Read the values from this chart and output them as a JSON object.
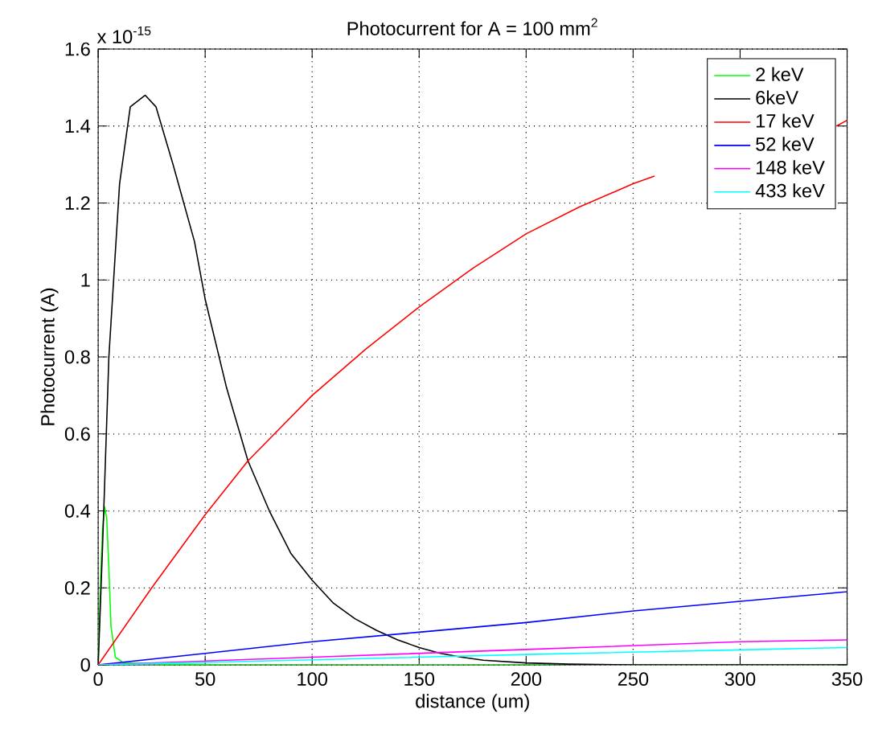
{
  "chart_data": {
    "type": "line",
    "title": "Photocurrent for A = 100 mm$^{2}$",
    "xlabel": "distance (um)",
    "ylabel": "Photocurrent (A)",
    "annotations": [
      "x 10$^{-15}$"
    ],
    "xlim": [
      0,
      350
    ],
    "ylim": [
      0,
      1.6
    ],
    "xticks": [
      0,
      50,
      100,
      150,
      200,
      250,
      300,
      350
    ],
    "yticks": [
      0,
      0.2,
      0.4,
      0.6,
      0.8,
      1,
      1.2,
      1.4,
      1.6
    ],
    "grid": true,
    "legend": "top right",
    "marker": "none",
    "line_style": "solid",
    "series": [
      {
        "name": "2 keV",
        "color": "#00ff00",
        "x": [
          0,
          1,
          2,
          3,
          4,
          5,
          6,
          8,
          12,
          30,
          65,
          100,
          350
        ],
        "values": [
          0,
          0.2,
          0.35,
          0.41,
          0.38,
          0.25,
          0.1,
          0.02,
          0.005,
          0.002,
          0,
          0,
          0
        ]
      },
      {
        "name": "6keV",
        "color": "#000000",
        "x": [
          0,
          2,
          5,
          10,
          15,
          22,
          27,
          35,
          45,
          50,
          60,
          70,
          80,
          90,
          100,
          110,
          120,
          130,
          140,
          150,
          160,
          170,
          180,
          200,
          220,
          250,
          350
        ],
        "values": [
          0,
          0.3,
          0.8,
          1.25,
          1.45,
          1.48,
          1.45,
          1.3,
          1.1,
          0.95,
          0.72,
          0.53,
          0.4,
          0.29,
          0.22,
          0.16,
          0.12,
          0.09,
          0.065,
          0.045,
          0.03,
          0.02,
          0.012,
          0.005,
          0.002,
          0,
          0
        ]
      },
      {
        "name": "17 keV",
        "color": "#ff0000",
        "x": [
          0,
          25,
          50,
          70,
          100,
          125,
          150,
          175,
          200,
          225,
          250,
          260,
          280,
          300,
          320,
          340,
          345,
          350
        ],
        "values": [
          0,
          0.2,
          0.39,
          0.53,
          0.7,
          0.82,
          0.93,
          1.03,
          1.12,
          1.19,
          1.25,
          1.27,
          null,
          null,
          null,
          null,
          1.4,
          1.415
        ]
      },
      {
        "name": "52 keV",
        "color": "#0000ff",
        "x": [
          0,
          50,
          100,
          150,
          200,
          250,
          300,
          350
        ],
        "values": [
          0,
          0.03,
          0.06,
          0.085,
          0.11,
          0.14,
          0.165,
          0.19
        ]
      },
      {
        "name": "148 keV",
        "color": "#ff00ff",
        "x": [
          0,
          100,
          200,
          300,
          350
        ],
        "values": [
          0,
          0.02,
          0.04,
          0.06,
          0.065
        ]
      },
      {
        "name": "433 keV",
        "color": "#00ffff",
        "x": [
          0,
          100,
          200,
          300,
          350
        ],
        "values": [
          0,
          0.013,
          0.027,
          0.039,
          0.045
        ]
      }
    ]
  }
}
